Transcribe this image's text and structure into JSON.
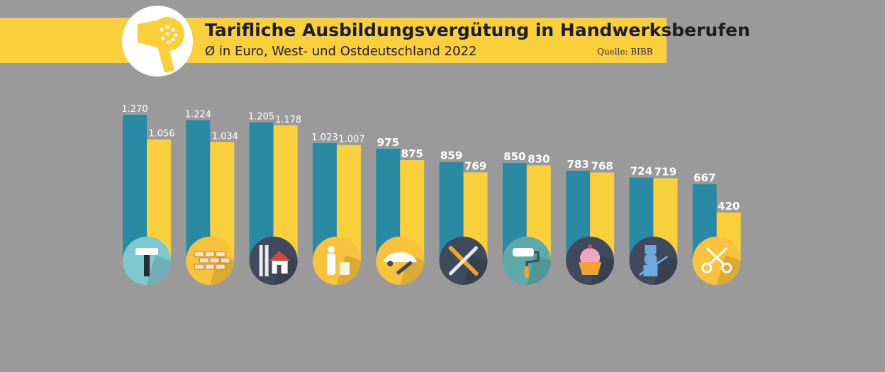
{
  "header": {
    "title": "Tarifliche Ausbildungsvergütung in Handwerksberufen",
    "subtitle": "Ø in Euro, West- und Ostdeutschland 2022",
    "source": "Quelle: BIBB",
    "logo_icon": "hairdryer-icon"
  },
  "colors": {
    "background": "#9a9a9a",
    "banner": "#f9cf3b",
    "west": "#2b8aa3",
    "east": "#f9cf3b",
    "label": "#ffffff"
  },
  "chart_data": {
    "type": "bar",
    "categories": [
      "hammer-icon",
      "bricks-icon",
      "house-ladder-icon",
      "waste-icon",
      "car-wrench-icon",
      "tools-icon",
      "paint-roller-icon",
      "cupcake-icon",
      "chimney-sweep-icon",
      "scissors-icon"
    ],
    "category_icon_colors": [
      "#7ec8cf",
      "#f9c23c",
      "#3f4a5c",
      "#f9c23c",
      "#f9c23c",
      "#3f4a5c",
      "#5fa9a9",
      "#3f4a5c",
      "#3f4a5c",
      "#f9c23c"
    ],
    "series": [
      {
        "values": [
          1270,
          1224,
          1205,
          1023,
          975,
          859,
          850,
          783,
          724,
          667
        ],
        "labels": [
          "1.270",
          "1.224",
          "1.205",
          "1.023",
          "975",
          "859",
          "850",
          "783",
          "724",
          "667"
        ]
      },
      {
        "values": [
          1056,
          1034,
          1178,
          1007,
          875,
          769,
          830,
          768,
          719,
          420
        ],
        "labels": [
          "1.056",
          "1.034",
          "1.178",
          "1.007",
          "875",
          "769",
          "830",
          "768",
          "719",
          "420"
        ]
      }
    ],
    "xlabel": "",
    "ylabel": "",
    "ylim": [
      0,
      1270
    ],
    "grid": false,
    "legend": "none"
  }
}
